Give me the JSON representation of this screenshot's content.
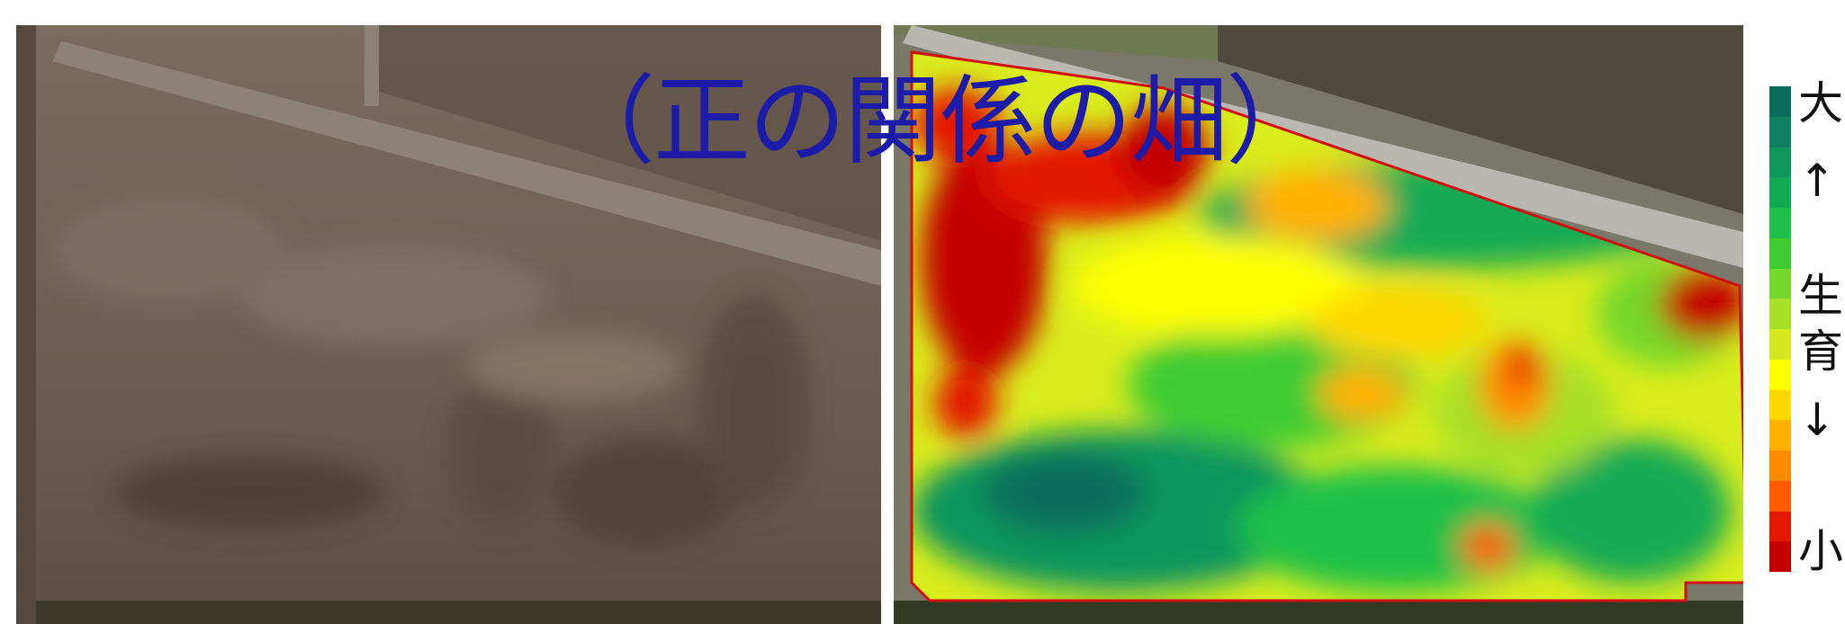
{
  "title": "（正の関係の畑）",
  "legend": {
    "top_label": "大",
    "up_arrow": "↑",
    "middle_label_1": "生",
    "middle_label_2": "育",
    "down_arrow": "↓",
    "bottom_label": "小",
    "colors": [
      "#0b6d5a",
      "#0f8060",
      "#11955f",
      "#13aa55",
      "#1cc04a",
      "#3ccc32",
      "#74d72c",
      "#a6e027",
      "#d4ea1e",
      "#ffff00",
      "#ffd800",
      "#ffb000",
      "#ff8c00",
      "#ff5a00",
      "#e31800",
      "#c30000"
    ]
  },
  "panels": {
    "left": "soil-aerial-photo",
    "right": "growth-heatmap"
  }
}
